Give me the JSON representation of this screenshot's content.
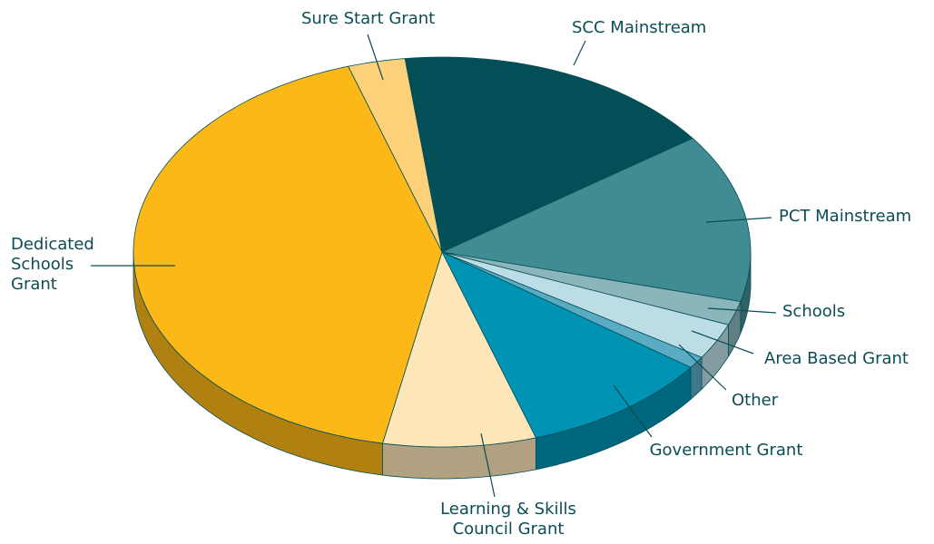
{
  "chart_data": {
    "type": "pie",
    "categories": [
      "Sure Start Grant",
      "SCC Mainstream",
      "PCT Mainstream",
      "Schools",
      "Area Based Grant",
      "Other",
      "Government Grant",
      "Learning & Skills Council Grant",
      "Dedicated Schools Grant"
    ],
    "values": [
      3,
      17,
      14,
      2,
      3,
      1,
      10,
      8,
      42
    ],
    "colors": [
      "#fdd07a",
      "#034f57",
      "#418c92",
      "#8ab5ba",
      "#bcdde6",
      "#5aacc4",
      "#0093b4",
      "#fde6b8",
      "#fbb817"
    ]
  }
}
